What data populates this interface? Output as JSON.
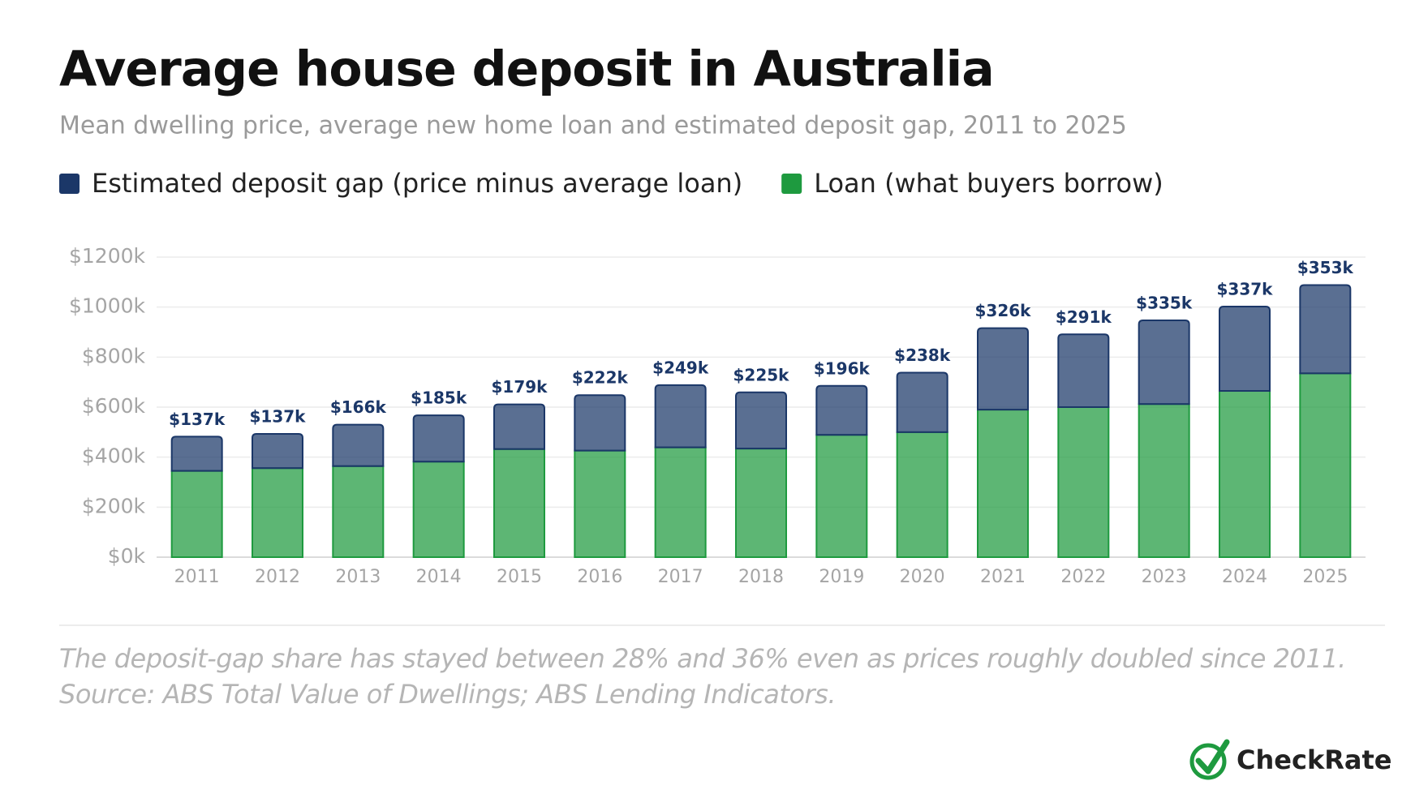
{
  "chart_data": {
    "type": "stacked_bar",
    "title": "Average house deposit in Australia",
    "subtitle": "Mean dwelling price, average new home loan and estimated deposit gap, 2011 to 2025",
    "categories": [
      "2011",
      "2012",
      "2013",
      "2014",
      "2015",
      "2016",
      "2017",
      "2018",
      "2019",
      "2020",
      "2021",
      "2022",
      "2023",
      "2024",
      "2025"
    ],
    "series": [
      {
        "name": "Estimated deposit gap (price minus average loan)",
        "color": "#1b3768",
        "values": [
          137,
          137,
          166,
          185,
          179,
          222,
          249,
          225,
          196,
          238,
          326,
          291,
          335,
          337,
          353
        ],
        "value_labels": [
          "$137k",
          "$137k",
          "$166k",
          "$185k",
          "$179k",
          "$222k",
          "$249k",
          "$225k",
          "$196k",
          "$238k",
          "$326k",
          "$291k",
          "$335k",
          "$337k",
          "$353k"
        ]
      },
      {
        "name": "Loan (what buyers borrow)",
        "color": "#1e9a3f",
        "values": [
          345,
          356,
          364,
          382,
          432,
          426,
          439,
          434,
          489,
          500,
          590,
          600,
          612,
          665,
          735
        ]
      }
    ],
    "ylim": [
      0,
      1200
    ],
    "yticks": [
      {
        "value": 0,
        "label": "$0k"
      },
      {
        "value": 200,
        "label": "$200k"
      },
      {
        "value": 400,
        "label": "$400k"
      },
      {
        "value": 600,
        "label": "$600k"
      },
      {
        "value": 800,
        "label": "$800k"
      },
      {
        "value": 1000,
        "label": "$1000k"
      },
      {
        "value": 1200,
        "label": "$1200k"
      }
    ],
    "grid": true,
    "note": "The deposit-gap share has stayed between 28% and 36% even as prices roughly doubled since 2011. Source: ABS Total Value of Dwellings; ABS Lending Indicators."
  },
  "brand": "CheckRate"
}
